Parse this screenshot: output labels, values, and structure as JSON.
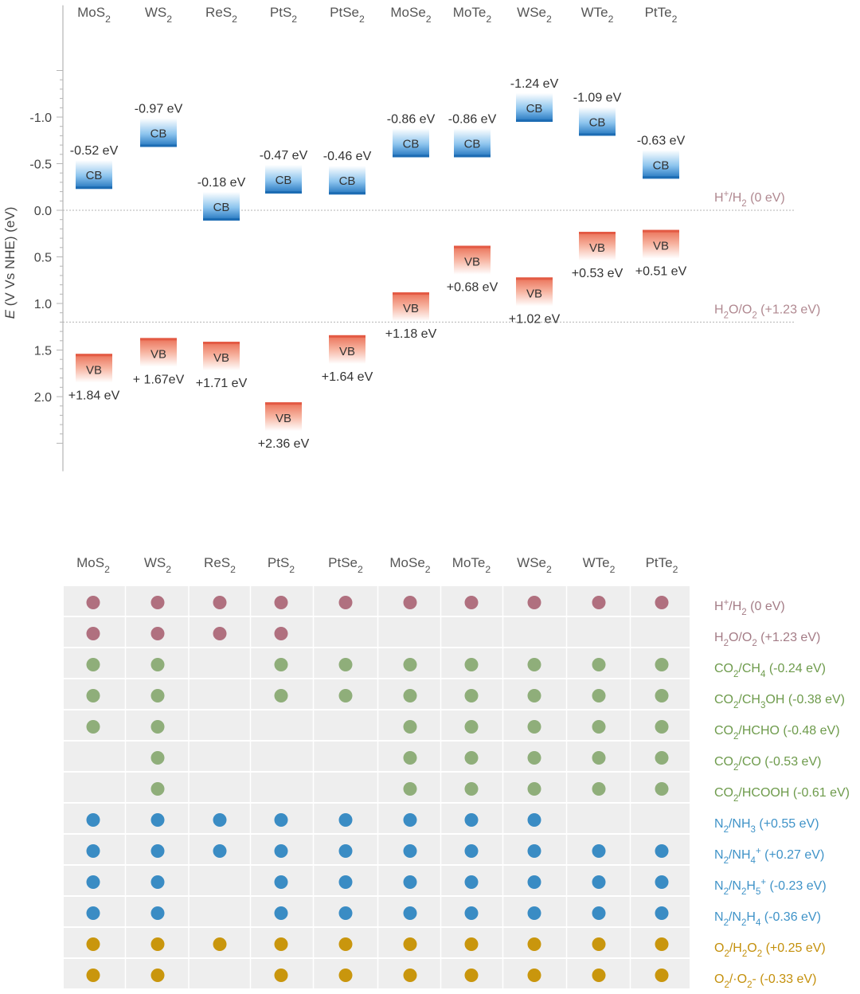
{
  "chart_data": [
    {
      "type": "band-diagram",
      "ylabel": "E (V Vs NHE) (eV)",
      "ylabel_italic_part": "E",
      "ylabel_rest": " (V Vs NHE) (eV)",
      "yticks": [
        {
          "value": -1.0,
          "label": "-1.0"
        },
        {
          "value": -0.5,
          "label": "-0.5"
        },
        {
          "value": 0.0,
          "label": "0.0"
        },
        {
          "value": 0.5,
          "label": "0.5"
        },
        {
          "value": 1.0,
          "label": "1.0"
        },
        {
          "value": 1.5,
          "label": "1.5"
        },
        {
          "value": 2.0,
          "label": "2.0"
        }
      ],
      "ylim": [
        -2.2,
        2.8
      ],
      "cb_label": "CB",
      "vb_label": "VB",
      "materials": [
        {
          "base": "MoS",
          "sub": "2",
          "cb": -0.52,
          "cb_label": "-0.52 eV",
          "vb": 1.84,
          "vb_label": "+1.84 eV"
        },
        {
          "base": "WS",
          "sub": "2",
          "cb": -0.97,
          "cb_label": "-0.97 eV",
          "vb": 1.67,
          "vb_label": "+ 1.67eV"
        },
        {
          "base": "ReS",
          "sub": "2",
          "cb": -0.18,
          "cb_label": "-0.18 eV",
          "vb": 1.71,
          "vb_label": "+1.71 eV"
        },
        {
          "base": "PtS",
          "sub": "2",
          "cb": -0.47,
          "cb_label": "-0.47 eV",
          "vb": 2.36,
          "vb_label": "+2.36 eV"
        },
        {
          "base": "PtSe",
          "sub": "2",
          "cb": -0.46,
          "cb_label": "-0.46 eV",
          "vb": 1.64,
          "vb_label": "+1.64 eV"
        },
        {
          "base": "MoSe",
          "sub": "2",
          "cb": -0.86,
          "cb_label": "-0.86 eV",
          "vb": 1.18,
          "vb_label": "+1.18 eV"
        },
        {
          "base": "MoTe",
          "sub": "2",
          "cb": -0.86,
          "cb_label": "-0.86 eV",
          "vb": 0.68,
          "vb_label": "+0.68 eV"
        },
        {
          "base": "WSe",
          "sub": "2",
          "cb": -1.24,
          "cb_label": "-1.24 eV",
          "vb": 1.02,
          "vb_label": "+1.02 eV"
        },
        {
          "base": "WTe",
          "sub": "2",
          "cb": -1.09,
          "cb_label": "-1.09 eV",
          "vb": 0.53,
          "vb_label": "+0.53 eV"
        },
        {
          "base": "PtTe",
          "sub": "2",
          "cb": -0.63,
          "cb_label": "-0.63 eV",
          "vb": 0.51,
          "vb_label": "+0.51 eV"
        }
      ],
      "reference_lines": [
        {
          "value": 0.0,
          "parts": [
            [
              "H",
              "n"
            ],
            [
              "+",
              "sup"
            ],
            [
              "/H",
              "n"
            ],
            [
              "2",
              "sub"
            ],
            [
              " (0 eV)",
              "n"
            ]
          ],
          "color": "#b08890"
        },
        {
          "value": 1.2,
          "parts": [
            [
              "H",
              "n"
            ],
            [
              "2",
              "sub"
            ],
            [
              "O/O",
              "n"
            ],
            [
              "2",
              "sub"
            ],
            [
              " (+1.23 eV)",
              "n"
            ]
          ],
          "color": "#b08890"
        }
      ]
    },
    {
      "type": "table",
      "materials": [
        {
          "base": "MoS",
          "sub": "2"
        },
        {
          "base": "WS",
          "sub": "2"
        },
        {
          "base": "ReS",
          "sub": "2"
        },
        {
          "base": "PtS",
          "sub": "2"
        },
        {
          "base": "PtSe",
          "sub": "2"
        },
        {
          "base": "MoSe",
          "sub": "2"
        },
        {
          "base": "MoTe",
          "sub": "2"
        },
        {
          "base": "WSe",
          "sub": "2"
        },
        {
          "base": "WTe",
          "sub": "2"
        },
        {
          "base": "PtTe",
          "sub": "2"
        }
      ],
      "colors": {
        "pink": "#b0707f",
        "green": "#8fae7a",
        "blue": "#3a8cc4",
        "gold": "#c9960d"
      },
      "text_colors": {
        "pink": "#a47c86",
        "green": "#6e9b4c",
        "blue": "#3f93c8",
        "gold": "#c4900c"
      },
      "rows": [
        {
          "color": "pink",
          "parts": [
            [
              "H",
              "n"
            ],
            [
              "+",
              "sup"
            ],
            [
              "/H",
              "n"
            ],
            [
              "2",
              "sub"
            ],
            [
              " (0 eV)",
              "n"
            ]
          ],
          "marks": [
            1,
            1,
            1,
            1,
            1,
            1,
            1,
            1,
            1,
            1
          ]
        },
        {
          "color": "pink",
          "parts": [
            [
              "H",
              "n"
            ],
            [
              "2",
              "sub"
            ],
            [
              "O/O",
              "n"
            ],
            [
              "2",
              "sub"
            ],
            [
              " (+1.23 eV)",
              "n"
            ]
          ],
          "marks": [
            1,
            1,
            1,
            1,
            0,
            0,
            0,
            0,
            0,
            0
          ]
        },
        {
          "color": "green",
          "parts": [
            [
              "CO",
              "n"
            ],
            [
              "2",
              "sub"
            ],
            [
              "/CH",
              "n"
            ],
            [
              "4",
              "sub"
            ],
            [
              " (-0.24 eV)",
              "n"
            ]
          ],
          "marks": [
            1,
            1,
            0,
            1,
            1,
            1,
            1,
            1,
            1,
            1
          ]
        },
        {
          "color": "green",
          "parts": [
            [
              "CO",
              "n"
            ],
            [
              "2",
              "sub"
            ],
            [
              "/CH",
              "n"
            ],
            [
              "3",
              "sub"
            ],
            [
              "OH (-0.38 eV)",
              "n"
            ]
          ],
          "marks": [
            1,
            1,
            0,
            1,
            1,
            1,
            1,
            1,
            1,
            1
          ]
        },
        {
          "color": "green",
          "parts": [
            [
              "CO",
              "n"
            ],
            [
              "2",
              "sub"
            ],
            [
              "/HCHO (-0.48 eV)",
              "n"
            ]
          ],
          "marks": [
            1,
            1,
            0,
            0,
            0,
            1,
            1,
            1,
            1,
            1
          ]
        },
        {
          "color": "green",
          "parts": [
            [
              "CO",
              "n"
            ],
            [
              "2",
              "sub"
            ],
            [
              "/CO (-0.53 eV)",
              "n"
            ]
          ],
          "marks": [
            0,
            1,
            0,
            0,
            0,
            1,
            1,
            1,
            1,
            1
          ]
        },
        {
          "color": "green",
          "parts": [
            [
              "CO",
              "n"
            ],
            [
              "2",
              "sub"
            ],
            [
              "/HCOOH (-0.61 eV)",
              "n"
            ]
          ],
          "marks": [
            0,
            1,
            0,
            0,
            0,
            1,
            1,
            1,
            1,
            1
          ]
        },
        {
          "color": "blue",
          "parts": [
            [
              "N",
              "n"
            ],
            [
              "2",
              "sub"
            ],
            [
              "/NH",
              "n"
            ],
            [
              "3",
              "sub"
            ],
            [
              " (+0.55 eV)",
              "n"
            ]
          ],
          "marks": [
            1,
            1,
            1,
            1,
            1,
            1,
            1,
            1,
            0,
            0
          ]
        },
        {
          "color": "blue",
          "parts": [
            [
              "N",
              "n"
            ],
            [
              "2",
              "sub"
            ],
            [
              "/NH",
              "n"
            ],
            [
              "4",
              "sub"
            ],
            [
              "+",
              "sup"
            ],
            [
              " (+0.27 eV)",
              "n"
            ]
          ],
          "marks": [
            1,
            1,
            1,
            1,
            1,
            1,
            1,
            1,
            1,
            1
          ]
        },
        {
          "color": "blue",
          "parts": [
            [
              "N",
              "n"
            ],
            [
              "2",
              "sub"
            ],
            [
              "/N",
              "n"
            ],
            [
              "2",
              "sub"
            ],
            [
              "H",
              "n"
            ],
            [
              "5",
              "sub"
            ],
            [
              "+",
              "sup"
            ],
            [
              " (-0.23 eV)",
              "n"
            ]
          ],
          "marks": [
            1,
            1,
            0,
            1,
            1,
            1,
            1,
            1,
            1,
            1
          ]
        },
        {
          "color": "blue",
          "parts": [
            [
              "N",
              "n"
            ],
            [
              "2",
              "sub"
            ],
            [
              "/N",
              "n"
            ],
            [
              "2",
              "sub"
            ],
            [
              "H",
              "n"
            ],
            [
              "4",
              "sub"
            ],
            [
              " (-0.36 eV)",
              "n"
            ]
          ],
          "marks": [
            1,
            1,
            0,
            1,
            1,
            1,
            1,
            1,
            1,
            1
          ]
        },
        {
          "color": "gold",
          "parts": [
            [
              "O",
              "n"
            ],
            [
              "2",
              "sub"
            ],
            [
              "/H",
              "n"
            ],
            [
              "2",
              "sub"
            ],
            [
              "O",
              "n"
            ],
            [
              "2",
              "sub"
            ],
            [
              " (+0.25 eV)",
              "n"
            ]
          ],
          "marks": [
            1,
            1,
            1,
            1,
            1,
            1,
            1,
            1,
            1,
            1
          ]
        },
        {
          "color": "gold",
          "parts": [
            [
              "O",
              "n"
            ],
            [
              "2",
              "sub"
            ],
            [
              "/·O",
              "n"
            ],
            [
              "2",
              "sub"
            ],
            [
              "- (-0.33 eV)",
              "n"
            ]
          ],
          "marks": [
            1,
            1,
            0,
            1,
            1,
            1,
            1,
            1,
            1,
            1
          ]
        }
      ]
    }
  ]
}
